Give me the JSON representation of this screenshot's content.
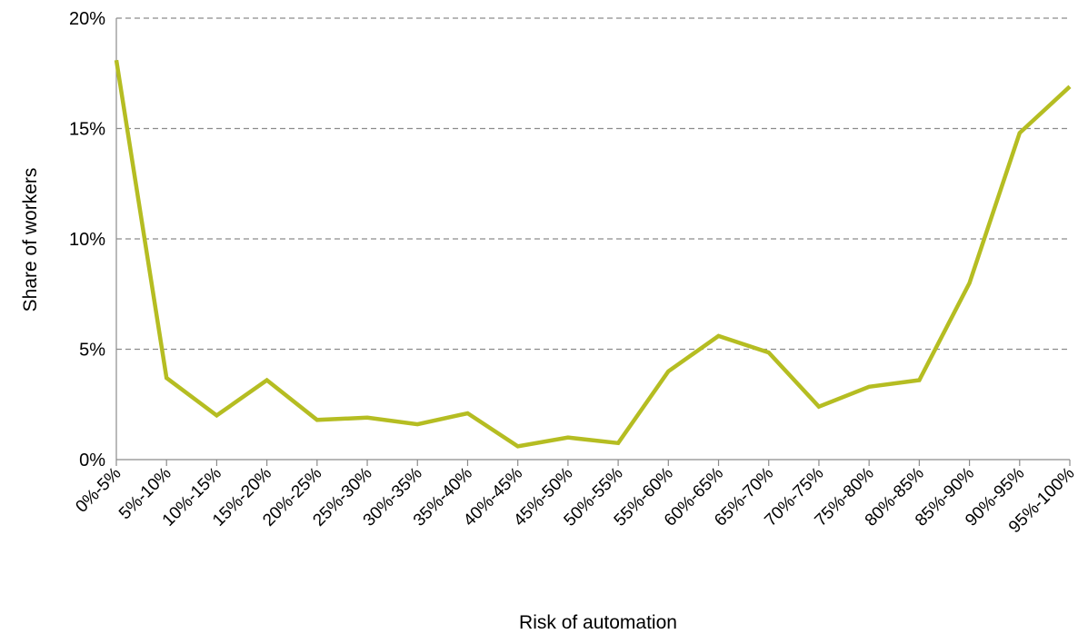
{
  "chart_data": {
    "type": "line",
    "title": "",
    "xlabel": "Risk of automation",
    "ylabel": "Share of workers",
    "categories": [
      "0%-5%",
      "5%-10%",
      "10%-15%",
      "15%-20%",
      "20%-25%",
      "25%-30%",
      "30%-35%",
      "35%-40%",
      "40%-45%",
      "45%-50%",
      "50%-55%",
      "55%-60%",
      "60%-65%",
      "65%-70%",
      "70%-75%",
      "75%-80%",
      "80%-85%",
      "85%-90%",
      "90%-95%",
      "95%-100%"
    ],
    "series": [
      {
        "values": [
          18.1,
          3.7,
          2.0,
          3.6,
          1.8,
          1.9,
          1.6,
          2.1,
          0.6,
          1.0,
          0.75,
          4.0,
          5.6,
          4.85,
          2.4,
          3.3,
          3.6,
          8.0,
          14.8,
          16.9
        ],
        "color": "#b5bd22"
      }
    ],
    "ylim": [
      0,
      20
    ],
    "yticks": [
      0,
      5,
      10,
      15,
      20
    ],
    "ytick_labels": [
      "0%",
      "5%",
      "10%",
      "15%",
      "20%"
    ],
    "grid": true,
    "legend": "none"
  }
}
